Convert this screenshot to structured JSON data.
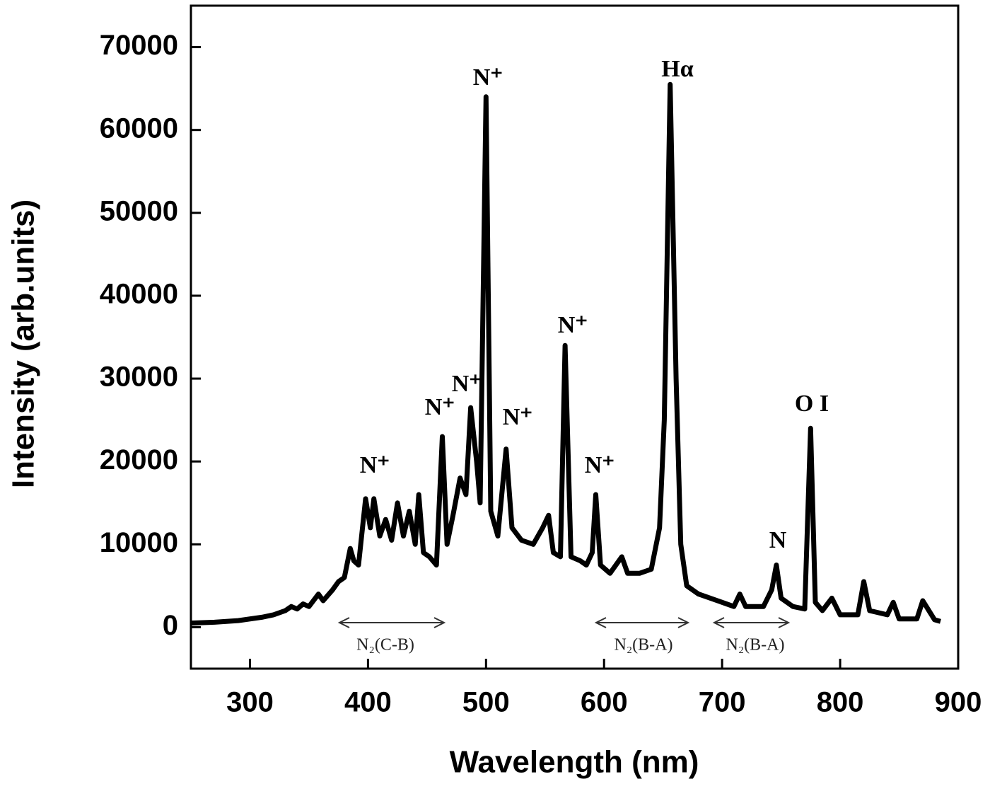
{
  "chart_data": {
    "type": "line",
    "x_label": "Wavelength (nm)",
    "y_label": "Intensity (arb.units)",
    "x": [
      250,
      270,
      290,
      310,
      320,
      330,
      335,
      340,
      345,
      350,
      358,
      362,
      370,
      375,
      380,
      385,
      388,
      392,
      398,
      402,
      405,
      410,
      415,
      420,
      425,
      430,
      435,
      440,
      443,
      447,
      452,
      458,
      463,
      467,
      472,
      478,
      483,
      487,
      492,
      495,
      500,
      504,
      510,
      517,
      522,
      530,
      540,
      548,
      553,
      557,
      563,
      567,
      572,
      580,
      585,
      590,
      593,
      597,
      605,
      615,
      620,
      630,
      640,
      647,
      651,
      656,
      661,
      665,
      670,
      680,
      700,
      710,
      715,
      720,
      735,
      742,
      746,
      750,
      760,
      770,
      775,
      779,
      785,
      793,
      800,
      815,
      820,
      825,
      840,
      845,
      850,
      865,
      870,
      880,
      885
    ],
    "values": [
      500,
      600,
      800,
      1200,
      1500,
      2000,
      2500,
      2200,
      2800,
      2500,
      4000,
      3200,
      4500,
      5500,
      6000,
      9500,
      8000,
      7500,
      15500,
      12000,
      15500,
      11000,
      13000,
      10500,
      15000,
      11000,
      14000,
      10000,
      16000,
      9000,
      8500,
      7500,
      23000,
      10000,
      13500,
      18000,
      16000,
      26500,
      20000,
      15000,
      64000,
      14000,
      11000,
      21500,
      12000,
      10500,
      10000,
      12000,
      13500,
      9000,
      8500,
      34000,
      8500,
      8000,
      7500,
      9000,
      16000,
      7500,
      6500,
      8500,
      6500,
      6500,
      7000,
      12000,
      25000,
      65500,
      30000,
      10000,
      5000,
      4000,
      3000,
      2500,
      4000,
      2500,
      2500,
      4500,
      7500,
      3500,
      2500,
      2200,
      24000,
      3000,
      2000,
      3500,
      1500,
      1500,
      5500,
      2000,
      1500,
      3000,
      1000,
      1000,
      3200,
      900,
      700
    ],
    "color": "#000000",
    "xlim": [
      250,
      900
    ],
    "xticks": [
      300,
      400,
      500,
      600,
      700,
      800,
      900
    ],
    "ylim": [
      -5000,
      75000
    ],
    "yticks": [
      0,
      10000,
      20000,
      30000,
      40000,
      50000,
      60000,
      70000
    ],
    "annotations": [
      "N⁺",
      "N⁺",
      "N⁺",
      "N⁺",
      "N⁺",
      "N⁺",
      "N⁺",
      "Hα",
      "O I",
      "N",
      "N₂(C-B)",
      "N₂(B-A)",
      "N₂(B-A)"
    ]
  }
}
